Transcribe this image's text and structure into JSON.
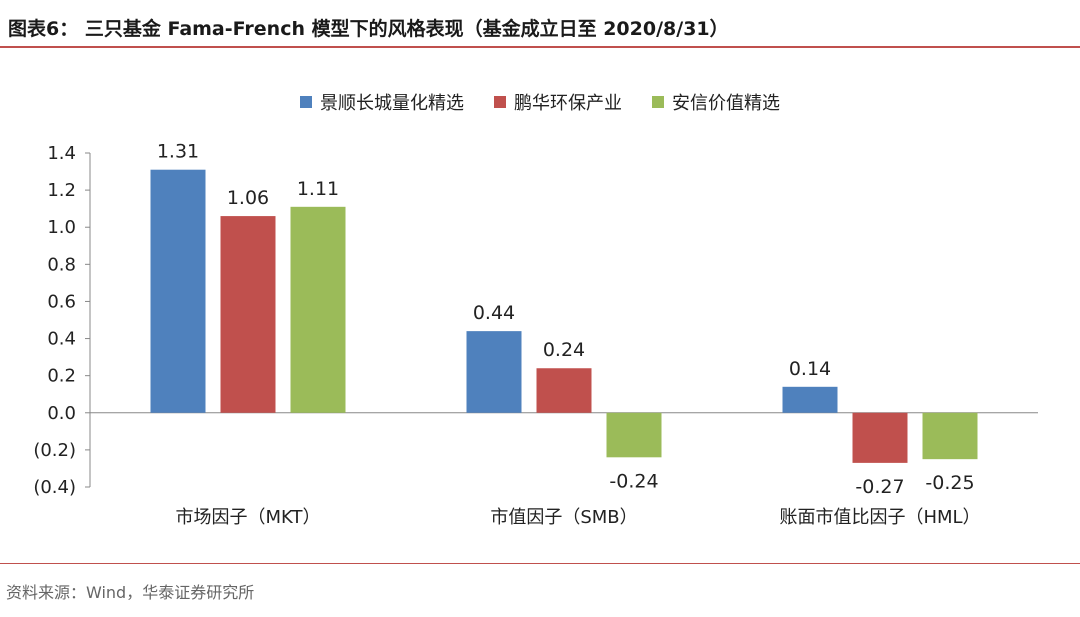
{
  "header": {
    "title": "图表6： 三只基金 Fama-French 模型下的风格表现（基金成立日至 2020/8/31）"
  },
  "footer": {
    "source": "资料来源：Wind，华泰证券研究所"
  },
  "colors": {
    "accent": "#c0504d",
    "series": [
      "#4f81bd",
      "#c0504d",
      "#9bbb59"
    ]
  },
  "chart_data": {
    "type": "bar",
    "categories": [
      "市场因子（MKT）",
      "市值因子（SMB）",
      "账面市值比因子（HML）"
    ],
    "series": [
      {
        "name": "景顺长城量化精选",
        "values": [
          1.31,
          0.44,
          0.14
        ]
      },
      {
        "name": "鹏华环保产业",
        "values": [
          1.06,
          0.24,
          -0.27
        ]
      },
      {
        "name": "安信价值精选",
        "values": [
          1.11,
          -0.24,
          -0.25
        ]
      }
    ],
    "data_labels": [
      [
        "1.31",
        "0.44",
        "0.14"
      ],
      [
        "1.06",
        "0.24",
        "-0.27"
      ],
      [
        "1.11",
        "-0.24",
        "-0.25"
      ]
    ],
    "yticks": [
      "(0.4)",
      "(0.2)",
      "0.0",
      "0.2",
      "0.4",
      "0.6",
      "0.8",
      "1.0",
      "1.2",
      "1.4"
    ],
    "ylim": [
      -0.4,
      1.4
    ],
    "legend_position": "top",
    "grid": false
  }
}
